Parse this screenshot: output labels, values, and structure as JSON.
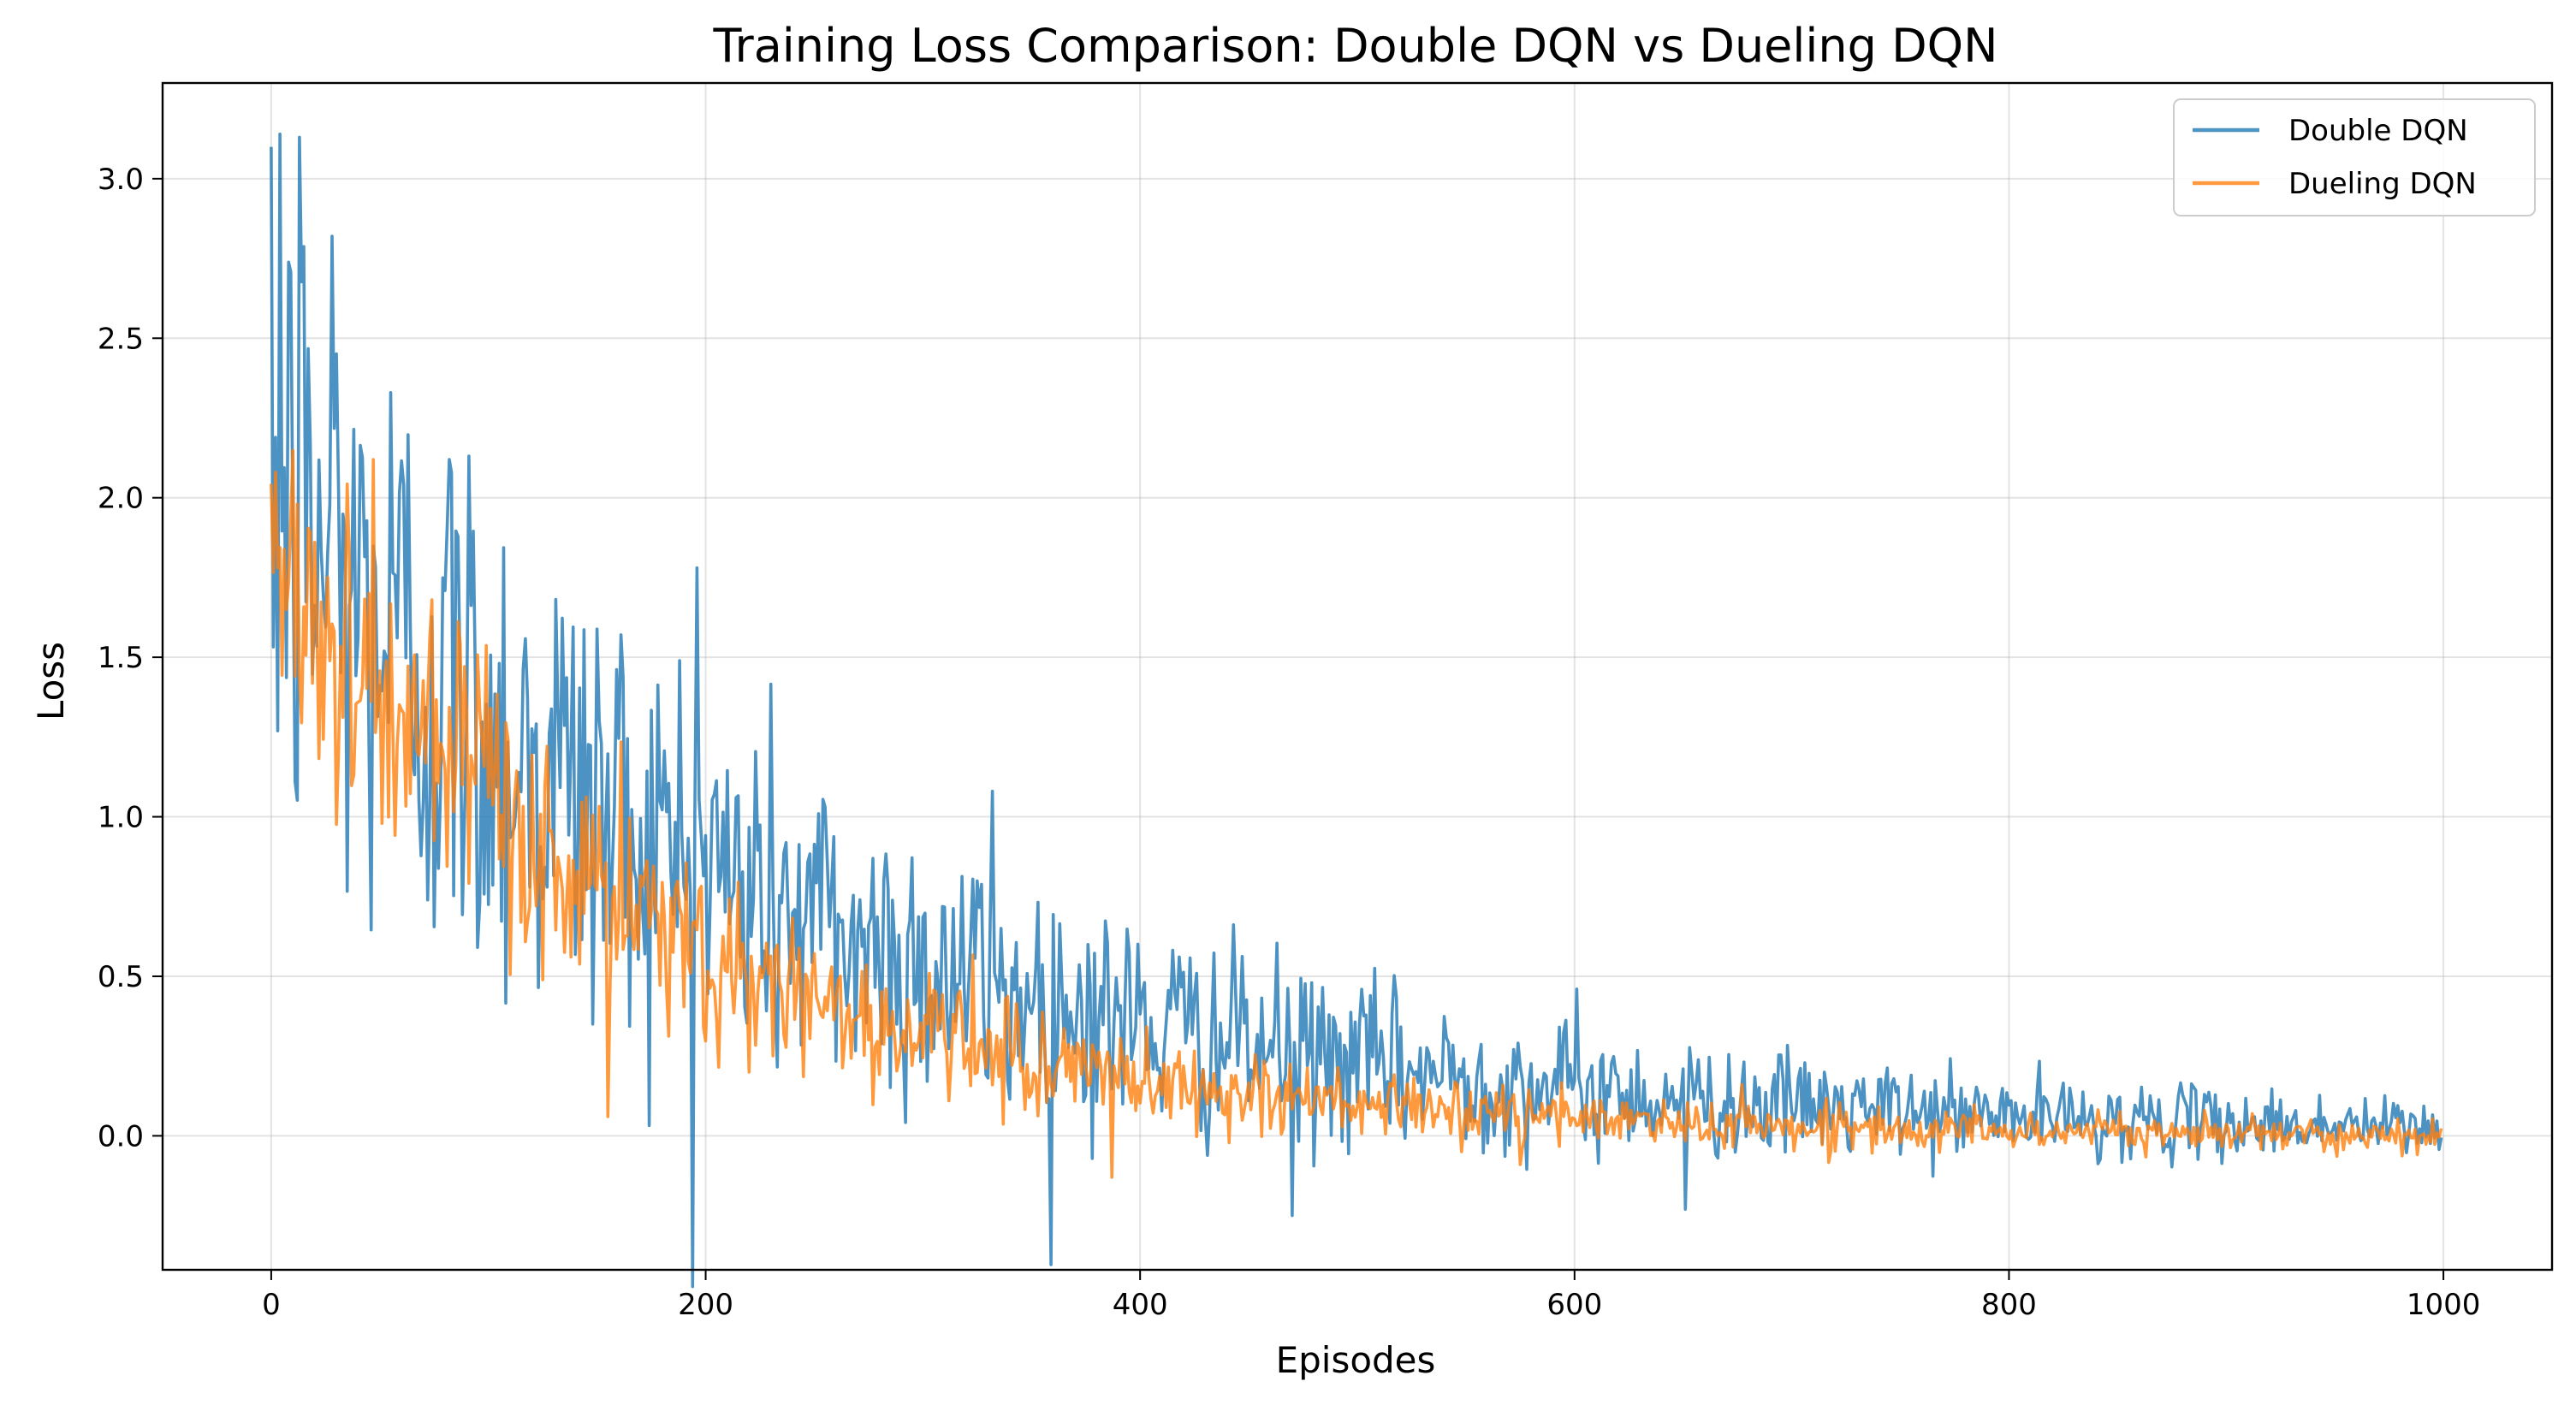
{
  "chart_data": {
    "type": "line",
    "title": "Training Loss Comparison: Double DQN vs Dueling DQN",
    "xlabel": "Episodes",
    "ylabel": "Loss",
    "xlim": [
      -50,
      1050
    ],
    "ylim": [
      -0.42,
      3.3
    ],
    "xticks": [
      0,
      200,
      400,
      600,
      800,
      1000
    ],
    "yticks": [
      0.0,
      0.5,
      1.0,
      1.5,
      2.0,
      2.5,
      3.0
    ],
    "xtick_labels": [
      "0",
      "200",
      "400",
      "600",
      "800",
      "1000"
    ],
    "ytick_labels": [
      "0.0",
      "0.5",
      "1.0",
      "1.5",
      "2.0",
      "2.5",
      "3.0"
    ],
    "grid": true,
    "legend_position": "top-right",
    "series": [
      {
        "name": "Double DQN",
        "color": "#1f77b4",
        "x_range": [
          0,
          999
        ],
        "points": 1000,
        "noise_model": "decaying gaussian noise around an exponential decay",
        "trend": {
          "start": 2.0,
          "decay_episodes": 230
        },
        "noise_scale": {
          "start": 0.6,
          "decay_episodes": 280,
          "floor": 0.03
        },
        "highlighted_points": [
          [
            0,
            3.1
          ],
          [
            4,
            3.14
          ],
          [
            13,
            3.13
          ],
          [
            28,
            2.82
          ],
          [
            196,
            1.78
          ],
          [
            332,
            1.08
          ],
          [
            470,
            -0.25
          ],
          [
            601,
            0.46
          ],
          [
            651,
            -0.23
          ]
        ]
      },
      {
        "name": "Dueling DQN",
        "color": "#ff7f0e",
        "x_range": [
          0,
          999
        ],
        "points": 1000,
        "noise_model": "decaying gaussian noise around an exponential decay",
        "trend": {
          "start": 1.85,
          "decay_episodes": 170
        },
        "noise_scale": {
          "start": 0.3,
          "decay_episodes": 230,
          "floor": 0.02
        },
        "highlighted_points": [
          [
            47,
            2.12
          ],
          [
            2,
            2.08
          ],
          [
            155,
            0.06
          ],
          [
            387,
            -0.13
          ],
          [
            575,
            -0.09
          ]
        ]
      }
    ]
  }
}
